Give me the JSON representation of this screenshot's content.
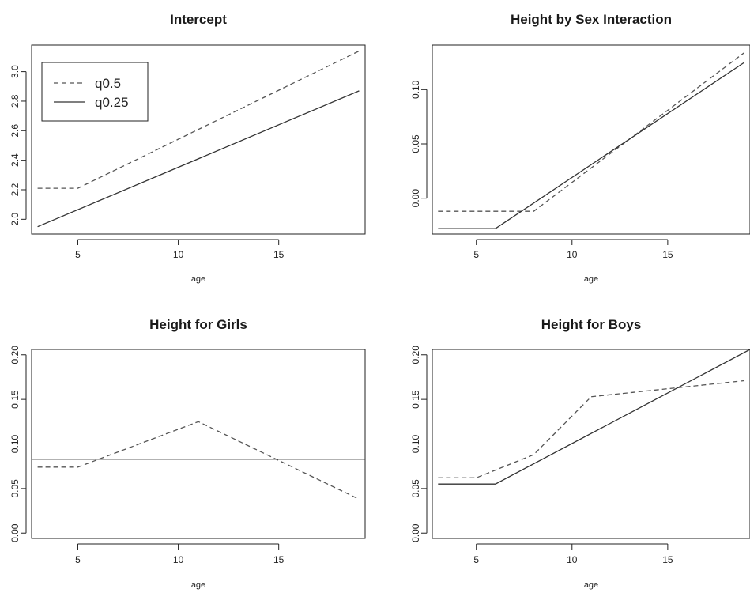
{
  "chart_data": [
    {
      "type": "line",
      "title": "Intercept",
      "xlabel": "age",
      "ylabel": "",
      "xlim": [
        2.7,
        19.3
      ],
      "ylim": [
        1.9,
        3.18
      ],
      "xticks": [
        5,
        10,
        15
      ],
      "yticks": [
        2.0,
        2.2,
        2.4,
        2.6,
        2.8,
        3.0
      ],
      "ytick_labels": [
        "2.0",
        "2.2",
        "2.4",
        "2.6",
        "2.8",
        "3.0"
      ],
      "legend": {
        "position": "top-left",
        "entries": [
          {
            "label": "q0.5",
            "style": "dashed"
          },
          {
            "label": "q0.25",
            "style": "solid"
          }
        ]
      },
      "series": [
        {
          "name": "q0.5",
          "style": "dashed",
          "x": [
            3,
            5,
            19
          ],
          "y": [
            2.21,
            2.21,
            3.14
          ]
        },
        {
          "name": "q0.25",
          "style": "solid",
          "x": [
            3,
            19
          ],
          "y": [
            1.95,
            2.87
          ]
        }
      ]
    },
    {
      "type": "line",
      "title": "Height by Sex Interaction",
      "xlabel": "age",
      "ylabel": "",
      "xlim": [
        2.7,
        19.3
      ],
      "ylim": [
        -0.033,
        0.141
      ],
      "xticks": [
        5,
        10,
        15
      ],
      "yticks": [
        0.0,
        0.05,
        0.1
      ],
      "ytick_labels": [
        "0.00",
        "0.05",
        "0.10"
      ],
      "series": [
        {
          "name": "q0.5",
          "style": "dashed",
          "x": [
            3,
            8,
            19
          ],
          "y": [
            -0.012,
            -0.012,
            0.134
          ]
        },
        {
          "name": "q0.25",
          "style": "solid",
          "x": [
            3,
            6,
            19
          ],
          "y": [
            -0.028,
            -0.028,
            0.125
          ]
        }
      ]
    },
    {
      "type": "line",
      "title": "Height for Girls",
      "xlabel": "age",
      "ylabel": "",
      "xlim": [
        2.7,
        19.3
      ],
      "ylim": [
        -0.006,
        0.206
      ],
      "xticks": [
        5,
        10,
        15
      ],
      "yticks": [
        0.0,
        0.05,
        0.1,
        0.15,
        0.2
      ],
      "ytick_labels": [
        "0.00",
        "0.05",
        "0.10",
        "0.15",
        "0.20"
      ],
      "series": [
        {
          "name": "q0.5",
          "style": "dashed",
          "x": [
            3,
            5,
            11,
            19
          ],
          "y": [
            0.074,
            0.074,
            0.125,
            0.038
          ]
        },
        {
          "name": "q0.25",
          "style": "solid",
          "x": [
            2.7,
            19.3
          ],
          "y": [
            0.083,
            0.083
          ]
        }
      ]
    },
    {
      "type": "line",
      "title": "Height for Boys",
      "xlabel": "age",
      "ylabel": "",
      "xlim": [
        2.7,
        19.3
      ],
      "ylim": [
        -0.006,
        0.206
      ],
      "xticks": [
        5,
        10,
        15
      ],
      "yticks": [
        0.0,
        0.05,
        0.1,
        0.15,
        0.2
      ],
      "ytick_labels": [
        "0.00",
        "0.05",
        "0.10",
        "0.15",
        "0.20"
      ],
      "series": [
        {
          "name": "q0.5",
          "style": "dashed",
          "x": [
            3,
            5,
            8,
            11,
            19
          ],
          "y": [
            0.062,
            0.062,
            0.088,
            0.153,
            0.171
          ]
        },
        {
          "name": "q0.25",
          "style": "solid",
          "x": [
            3,
            6,
            19.3
          ],
          "y": [
            0.055,
            0.055,
            0.206
          ]
        }
      ]
    }
  ]
}
